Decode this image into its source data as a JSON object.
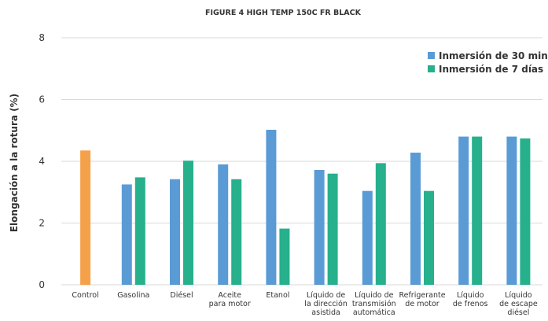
{
  "chart_data": {
    "type": "bar",
    "title": "FIGURE 4 HIGH TEMP 150C FR BLACK",
    "ylabel": "Elongación a la rotura (%)",
    "xlabel": "",
    "ylim": [
      0,
      8
    ],
    "yticks": [
      0,
      2,
      4,
      6,
      8
    ],
    "grid": true,
    "legend_position": "top-right",
    "categories": [
      [
        "Control"
      ],
      [
        "Gasolina"
      ],
      [
        "Diésel"
      ],
      [
        "Aceite",
        "para motor"
      ],
      [
        "Etanol"
      ],
      [
        "Líquido de",
        "la dirección",
        "asistida"
      ],
      [
        "Líquido de",
        "transmisión",
        "automática"
      ],
      [
        "Refrigerante",
        "de motor"
      ],
      [
        "Líquido",
        "de frenos"
      ],
      [
        "Líquido",
        "de escape",
        "diésel"
      ]
    ],
    "control": {
      "value": 4.35,
      "color": "#f5a14a"
    },
    "series": [
      {
        "name": "Inmersión de 30 min",
        "color": "#5b9bd5",
        "values": [
          null,
          3.25,
          3.42,
          3.9,
          5.02,
          3.72,
          3.04,
          4.28,
          4.8,
          4.8
        ]
      },
      {
        "name": "Inmersión de 7 días",
        "color": "#26b08c",
        "values": [
          null,
          3.48,
          4.02,
          3.42,
          1.82,
          3.6,
          3.94,
          3.04,
          4.8,
          4.74
        ]
      }
    ],
    "gridline_color": "#d9d9d9"
  }
}
